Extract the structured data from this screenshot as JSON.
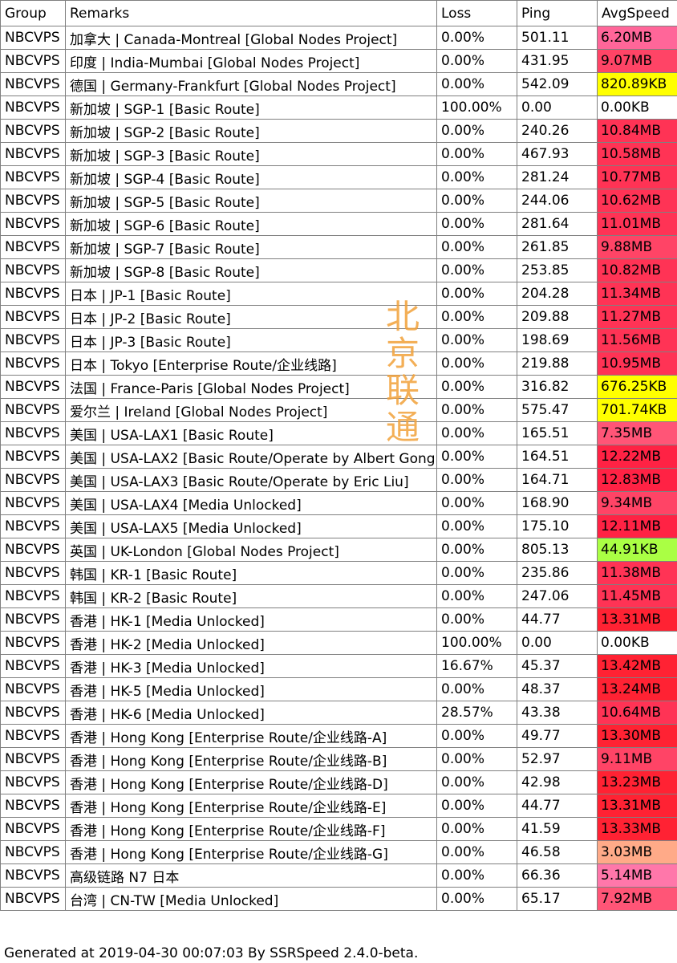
{
  "headers": {
    "group": "Group",
    "remarks": "Remarks",
    "loss": "Loss",
    "ping": "Ping",
    "speed": "AvgSpeed"
  },
  "rows": [
    {
      "group": "NBCVPS",
      "remarks": "加拿大 | Canada-Montreal [Global Nodes Project]",
      "loss": "0.00%",
      "ping": "501.11",
      "speed": "6.20MB",
      "color": "#ff6699"
    },
    {
      "group": "NBCVPS",
      "remarks": "印度 | India-Mumbai [Global Nodes Project]",
      "loss": "0.00%",
      "ping": "431.95",
      "speed": "9.07MB",
      "color": "#ff4466"
    },
    {
      "group": "NBCVPS",
      "remarks": "德国 | Germany-Frankfurt [Global Nodes Project]",
      "loss": "0.00%",
      "ping": "542.09",
      "speed": "820.89KB",
      "color": "#ffff00"
    },
    {
      "group": "NBCVPS",
      "remarks": "新加坡 | SGP-1 [Basic Route]",
      "loss": "100.00%",
      "ping": "0.00",
      "speed": "0.00KB",
      "color": "#ffffff"
    },
    {
      "group": "NBCVPS",
      "remarks": "新加坡 | SGP-2 [Basic Route]",
      "loss": "0.00%",
      "ping": "240.26",
      "speed": "10.84MB",
      "color": "#ff3355"
    },
    {
      "group": "NBCVPS",
      "remarks": "新加坡 | SGP-3 [Basic Route]",
      "loss": "0.00%",
      "ping": "467.93",
      "speed": "10.58MB",
      "color": "#ff3355"
    },
    {
      "group": "NBCVPS",
      "remarks": "新加坡 | SGP-4 [Basic Route]",
      "loss": "0.00%",
      "ping": "281.24",
      "speed": "10.77MB",
      "color": "#ff3355"
    },
    {
      "group": "NBCVPS",
      "remarks": "新加坡 | SGP-5 [Basic Route]",
      "loss": "0.00%",
      "ping": "244.06",
      "speed": "10.62MB",
      "color": "#ff3355"
    },
    {
      "group": "NBCVPS",
      "remarks": "新加坡 | SGP-6 [Basic Route]",
      "loss": "0.00%",
      "ping": "281.64",
      "speed": "11.01MB",
      "color": "#ff3355"
    },
    {
      "group": "NBCVPS",
      "remarks": "新加坡 | SGP-7 [Basic Route]",
      "loss": "0.00%",
      "ping": "261.85",
      "speed": "9.88MB",
      "color": "#ff4466"
    },
    {
      "group": "NBCVPS",
      "remarks": "新加坡 | SGP-8 [Basic Route]",
      "loss": "0.00%",
      "ping": "253.85",
      "speed": "10.82MB",
      "color": "#ff3355"
    },
    {
      "group": "NBCVPS",
      "remarks": "日本 | JP-1 [Basic Route]",
      "loss": "0.00%",
      "ping": "204.28",
      "speed": "11.34MB",
      "color": "#ff3355"
    },
    {
      "group": "NBCVPS",
      "remarks": "日本 | JP-2 [Basic Route]",
      "loss": "0.00%",
      "ping": "209.88",
      "speed": "11.27MB",
      "color": "#ff3355"
    },
    {
      "group": "NBCVPS",
      "remarks": "日本 | JP-3 [Basic Route]",
      "loss": "0.00%",
      "ping": "198.69",
      "speed": "11.56MB",
      "color": "#ff3355"
    },
    {
      "group": "NBCVPS",
      "remarks": "日本 | Tokyo [Enterprise Route/企业线路]",
      "loss": "0.00%",
      "ping": "219.88",
      "speed": "10.95MB",
      "color": "#ff3355"
    },
    {
      "group": "NBCVPS",
      "remarks": "法国 | France-Paris [Global Nodes Project]",
      "loss": "0.00%",
      "ping": "316.82",
      "speed": "676.25KB",
      "color": "#ffff00"
    },
    {
      "group": "NBCVPS",
      "remarks": "爱尔兰 | Ireland [Global Nodes Project]",
      "loss": "0.00%",
      "ping": "575.47",
      "speed": "701.74KB",
      "color": "#ffff00"
    },
    {
      "group": "NBCVPS",
      "remarks": "美国 | USA-LAX1  [Basic Route]",
      "loss": "0.00%",
      "ping": "165.51",
      "speed": "7.35MB",
      "color": "#ff5577"
    },
    {
      "group": "NBCVPS",
      "remarks": "美国 | USA-LAX2 [Basic Route/Operate by Albert Gong]",
      "loss": "0.00%",
      "ping": "164.51",
      "speed": "12.22MB",
      "color": "#ff2244"
    },
    {
      "group": "NBCVPS",
      "remarks": "美国 | USA-LAX3 [Basic Route/Operate by Eric Liu]",
      "loss": "0.00%",
      "ping": "164.71",
      "speed": "12.83MB",
      "color": "#ff2244"
    },
    {
      "group": "NBCVPS",
      "remarks": "美国 | USA-LAX4  [Media Unlocked]",
      "loss": "0.00%",
      "ping": "168.90",
      "speed": "9.34MB",
      "color": "#ff4466"
    },
    {
      "group": "NBCVPS",
      "remarks": "美国 | USA-LAX5  [Media Unlocked]",
      "loss": "0.00%",
      "ping": "175.10",
      "speed": "12.11MB",
      "color": "#ff2244"
    },
    {
      "group": "NBCVPS",
      "remarks": "英国 | UK-London [Global Nodes Project]",
      "loss": "0.00%",
      "ping": "805.13",
      "speed": "44.91KB",
      "color": "#aaff44"
    },
    {
      "group": "NBCVPS",
      "remarks": "韩国 | KR-1 [Basic Route]",
      "loss": "0.00%",
      "ping": "235.86",
      "speed": "11.38MB",
      "color": "#ff3355"
    },
    {
      "group": "NBCVPS",
      "remarks": "韩国 | KR-2 [Basic Route]",
      "loss": "0.00%",
      "ping": "247.06",
      "speed": "11.45MB",
      "color": "#ff3355"
    },
    {
      "group": "NBCVPS",
      "remarks": "香港 | HK-1 [Media Unlocked]",
      "loss": "0.00%",
      "ping": "44.77",
      "speed": "13.31MB",
      "color": "#ff2233"
    },
    {
      "group": "NBCVPS",
      "remarks": "香港 | HK-2 [Media Unlocked]",
      "loss": "100.00%",
      "ping": "0.00",
      "speed": "0.00KB",
      "color": "#ffffff"
    },
    {
      "group": "NBCVPS",
      "remarks": "香港 | HK-3 [Media Unlocked]",
      "loss": "16.67%",
      "ping": "45.37",
      "speed": "13.42MB",
      "color": "#ff2233"
    },
    {
      "group": "NBCVPS",
      "remarks": "香港 | HK-5 [Media Unlocked]",
      "loss": "0.00%",
      "ping": "48.37",
      "speed": "13.24MB",
      "color": "#ff2233"
    },
    {
      "group": "NBCVPS",
      "remarks": "香港 | HK-6 [Media Unlocked]",
      "loss": "28.57%",
      "ping": "43.38",
      "speed": "10.64MB",
      "color": "#ff3355"
    },
    {
      "group": "NBCVPS",
      "remarks": "香港 | Hong Kong [Enterprise Route/企业线路-A]",
      "loss": "0.00%",
      "ping": "49.77",
      "speed": "13.30MB",
      "color": "#ff2233"
    },
    {
      "group": "NBCVPS",
      "remarks": "香港 | Hong Kong [Enterprise Route/企业线路-B]",
      "loss": "0.00%",
      "ping": "52.97",
      "speed": "9.11MB",
      "color": "#ff4466"
    },
    {
      "group": "NBCVPS",
      "remarks": "香港 | Hong Kong [Enterprise Route/企业线路-D]",
      "loss": "0.00%",
      "ping": "42.98",
      "speed": "13.23MB",
      "color": "#ff2233"
    },
    {
      "group": "NBCVPS",
      "remarks": "香港 | Hong Kong [Enterprise Route/企业线路-E]",
      "loss": "0.00%",
      "ping": "44.77",
      "speed": "13.31MB",
      "color": "#ff2233"
    },
    {
      "group": "NBCVPS",
      "remarks": "香港 | Hong Kong [Enterprise Route/企业线路-F]",
      "loss": "0.00%",
      "ping": "41.59",
      "speed": "13.33MB",
      "color": "#ff2233"
    },
    {
      "group": "NBCVPS",
      "remarks": "香港 | Hong Kong [Enterprise Route/企业线路-G]",
      "loss": "0.00%",
      "ping": "46.58",
      "speed": "3.03MB",
      "color": "#ffaa88"
    },
    {
      "group": "NBCVPS",
      "remarks": "高级链路 N7 日本",
      "loss": "0.00%",
      "ping": "66.36",
      "speed": "5.14MB",
      "color": "#ff77aa"
    },
    {
      "group": "NBCVPS",
      "remarks": "台湾 | CN-TW [Media Unlocked]",
      "loss": "0.00%",
      "ping": "65.17",
      "speed": "7.92MB",
      "color": "#ff5577"
    }
  ],
  "footer": "Generated at 2019-04-30 00:07:03 By SSRSpeed 2.4.0-beta.",
  "overlay_text": "北京联通"
}
